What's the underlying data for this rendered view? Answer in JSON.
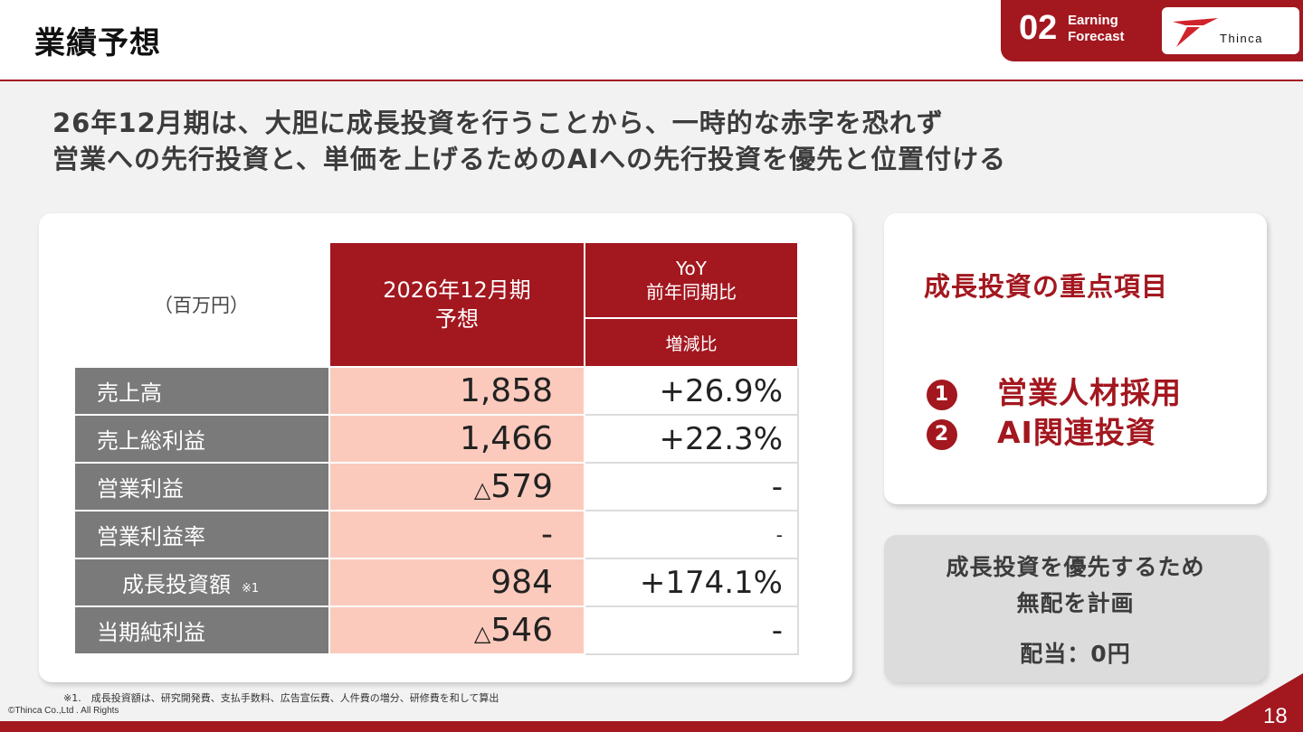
{
  "header": {
    "title": "業績予想",
    "section_number": "02",
    "section_name_line1": "Earning",
    "section_name_line2": "Forecast",
    "logo_text": "Thinca"
  },
  "headline": {
    "line1": "26年12月期は、大胆に成長投資を行うことから、一時的な赤字を恐れず",
    "line2": "営業への先行投資と、単価を上げるためのAIへの先行投資を優先と位置付ける"
  },
  "table": {
    "unit_label": "（百万円）",
    "col_main_line1": "2026年12月期",
    "col_main_line2": "予想",
    "col_yoy_line1": "YoY",
    "col_yoy_line2": "前年同期比",
    "col_yoy_sub": "増減比",
    "rows": [
      {
        "label": "売上高",
        "value": "1,858",
        "value_prefix": "",
        "yoy": "+26.9%"
      },
      {
        "label": "売上総利益",
        "value": "1,466",
        "value_prefix": "",
        "yoy": "+22.3%"
      },
      {
        "label": "営業利益",
        "value": "579",
        "value_prefix": "△",
        "yoy": "-"
      },
      {
        "label": "営業利益率",
        "value": "-",
        "value_prefix": "",
        "yoy": "-"
      },
      {
        "label": "成長投資額",
        "note": "※1",
        "value": "984",
        "value_prefix": "",
        "yoy": "+174.1%"
      },
      {
        "label": "当期純利益",
        "value": "546",
        "value_prefix": "△",
        "yoy": "-"
      }
    ]
  },
  "focus": {
    "title": "成長投資の重点項目",
    "items": [
      {
        "num": "1",
        "label": "営業人材採用"
      },
      {
        "num": "2",
        "label": "AI関連投資"
      }
    ]
  },
  "dividend": {
    "line1": "成長投資を優先するため",
    "line2": "無配を計画",
    "line3": "配当：0円"
  },
  "footer": {
    "footnote": "※1.　成長投資額は、研究開発費、支払手数料、広告宣伝費、人件費の増分、研修費を和して算出",
    "copyright": "©Thinca Co.,Ltd . All Rights",
    "page_number": "18"
  },
  "colors": {
    "brand_red": "#a3171f",
    "row_label_gray": "#7a7a7a",
    "value_pink": "#fbcabc"
  }
}
